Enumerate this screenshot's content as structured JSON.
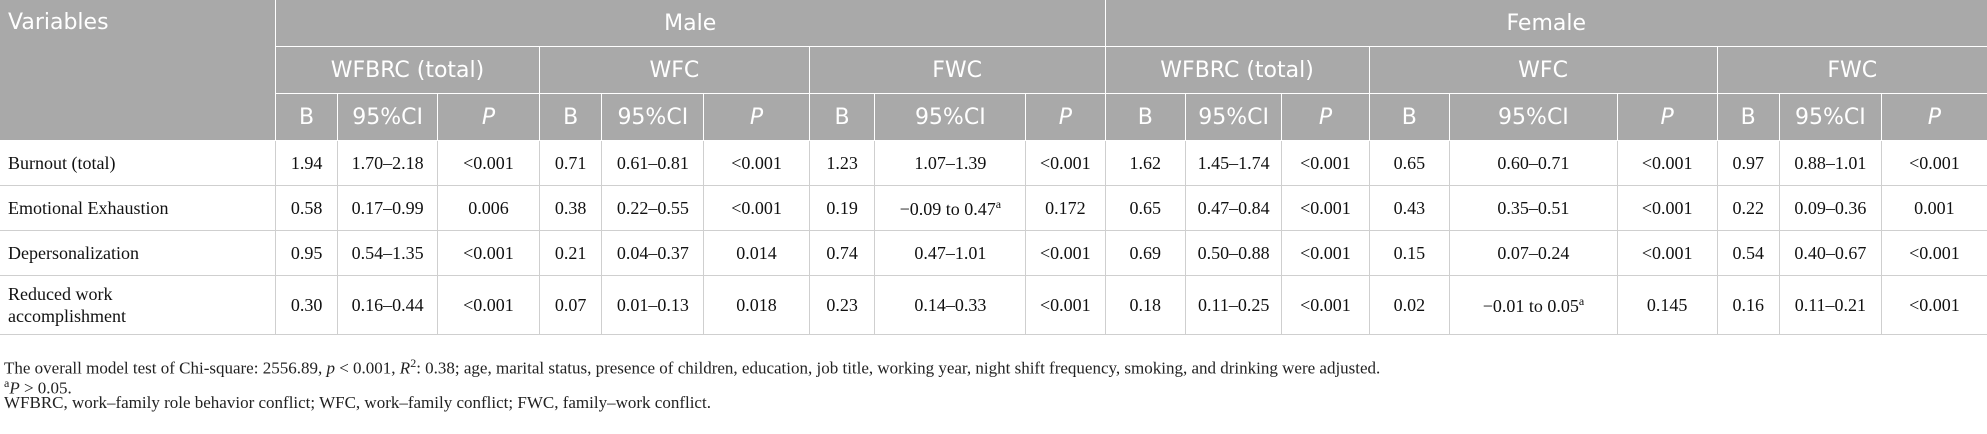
{
  "header": {
    "variables": "Variables",
    "groups": [
      "Male",
      "Female"
    ],
    "measures": [
      "WFBRC (total)",
      "WFC",
      "FWC",
      "WFBRC (total)",
      "WFC",
      "FWC"
    ],
    "stats": [
      "B",
      "95%CI",
      "P"
    ]
  },
  "rows": [
    {
      "label": "Burnout (total)",
      "cells": [
        "1.94",
        "1.70–2.18",
        "<0.001",
        "0.71",
        "0.61–0.81",
        "<0.001",
        "1.23",
        "1.07–1.39",
        "<0.001",
        "1.62",
        "1.45–1.74",
        "<0.001",
        "0.65",
        "0.60–0.71",
        "<0.001",
        "0.97",
        "0.88–1.01",
        "<0.001"
      ]
    },
    {
      "label": "Emotional Exhaustion",
      "cells": [
        "0.58",
        "0.17–0.99",
        "0.006",
        "0.38",
        "0.22–0.55",
        "<0.001",
        "0.19",
        "−0.09 to 0.47",
        "0.172",
        "0.65",
        "0.47–0.84",
        "<0.001",
        "0.43",
        "0.35–0.51",
        "<0.001",
        "0.22",
        "0.09–0.36",
        "0.001"
      ]
    },
    {
      "label": "Depersonalization",
      "cells": [
        "0.95",
        "0.54–1.35",
        "<0.001",
        "0.21",
        "0.04–0.37",
        "0.014",
        "0.74",
        "0.47–1.01",
        "<0.001",
        "0.69",
        "0.50–0.88",
        "<0.001",
        "0.15",
        "0.07–0.24",
        "<0.001",
        "0.54",
        "0.40–0.67",
        "<0.001"
      ]
    },
    {
      "label_line1": "Reduced work",
      "label_line2": "accomplishment",
      "cells": [
        "0.30",
        "0.16–0.44",
        "<0.001",
        "0.07",
        "0.01–0.13",
        "0.018",
        "0.23",
        "0.14–0.33",
        "<0.001",
        "0.18",
        "0.11–0.25",
        "<0.001",
        "0.02",
        "−0.01 to 0.05",
        "0.145",
        "0.16",
        "0.11–0.21",
        "<0.001"
      ]
    }
  ],
  "footnote_marker": "a",
  "notes": {
    "line1": {
      "a": "The overall model test of Chi-square: 2556.89, ",
      "p": "p",
      "b": " < 0.001, ",
      "r": "R",
      "sup": "2",
      "c": ": 0.38; age, marital status, presence of children, education, job title, working year, night shift frequency, smoking, and drinking were adjusted."
    },
    "line2": {
      "sup": "a",
      "p": "P",
      "rest": " > 0.05."
    },
    "line3": "WFBRC, work–family role behavior conflict; WFC, work–family conflict; FWC, family–work conflict."
  }
}
